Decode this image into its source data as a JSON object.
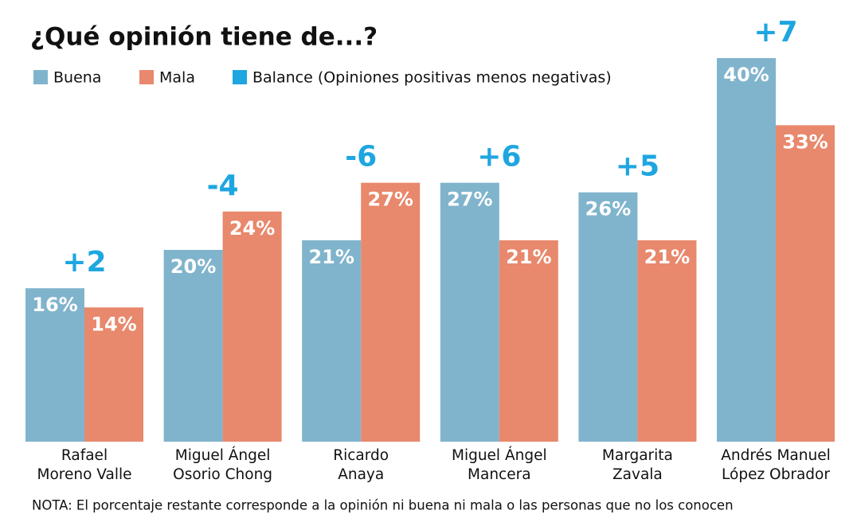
{
  "chart_data": {
    "type": "bar",
    "title": "¿Qué opinión tiene de...?",
    "categories": [
      [
        "Rafael",
        "Moreno Valle"
      ],
      [
        "Miguel Ángel",
        "Osorio Chong"
      ],
      [
        "Ricardo",
        "Anaya"
      ],
      [
        "Miguel Ángel",
        "Mancera"
      ],
      [
        "Margarita",
        "Zavala"
      ],
      [
        "Andrés Manuel",
        "López Obrador"
      ]
    ],
    "series": [
      {
        "name": "Buena",
        "color": "#80b4cd",
        "values": [
          16,
          20,
          21,
          27,
          26,
          40
        ],
        "value_labels": [
          "16%",
          "20%",
          "21%",
          "27%",
          "26%",
          "40%"
        ]
      },
      {
        "name": "Mala",
        "color": "#e8886c",
        "values": [
          14,
          24,
          27,
          21,
          21,
          33
        ],
        "value_labels": [
          "14%",
          "24%",
          "27%",
          "21%",
          "21%",
          "33%"
        ]
      },
      {
        "name": "Balance (Opiniones positivas menos negativas)",
        "color": "#1ea6e0",
        "values": [
          2,
          -4,
          -6,
          6,
          5,
          7
        ],
        "value_labels": [
          "+2",
          "-4",
          "-6",
          "+6",
          "+5",
          "+7"
        ]
      }
    ],
    "note": "NOTA: El porcentaje restante corresponde a la opinión ni buena ni mala o las personas que no los conocen"
  }
}
